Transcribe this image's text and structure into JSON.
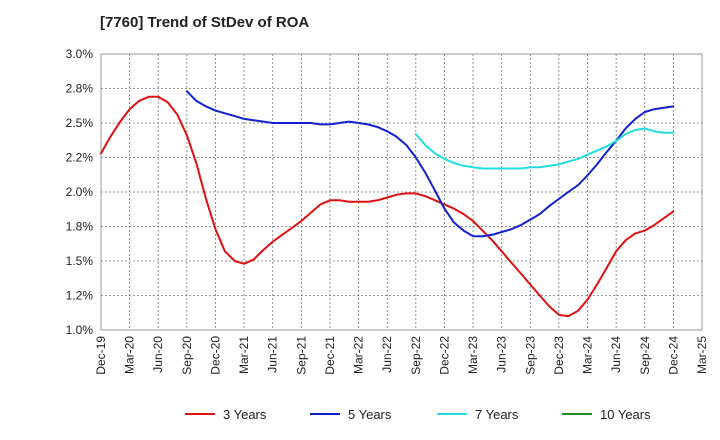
{
  "chart_data": {
    "type": "line",
    "title": "[7760]  Trend of StDev of ROA",
    "xlabel": "",
    "ylabel": "",
    "ylim": [
      1.0,
      3.0
    ],
    "y_ticks": [
      "3.0%",
      "2.8%",
      "2.5%",
      "2.2%",
      "2.0%",
      "1.8%",
      "1.5%",
      "1.2%",
      "1.0%"
    ],
    "x_ticks": [
      "Dec-19",
      "Mar-20",
      "Jun-20",
      "Sep-20",
      "Dec-20",
      "Mar-21",
      "Jun-21",
      "Sep-21",
      "Dec-21",
      "Mar-22",
      "Jun-22",
      "Sep-22",
      "Dec-22",
      "Mar-23",
      "Jun-23",
      "Sep-23",
      "Dec-23",
      "Mar-24",
      "Jun-24",
      "Sep-24",
      "Dec-24",
      "Mar-25"
    ],
    "grid": true,
    "legend_position": "bottom",
    "series": [
      {
        "name": "3 Years",
        "color": "#dd1111",
        "x": [
          0,
          0.33,
          0.67,
          1,
          1.33,
          1.67,
          2,
          2.33,
          2.67,
          3,
          3.33,
          3.67,
          4,
          4.33,
          4.67,
          5,
          5.33,
          5.67,
          6,
          6.33,
          6.67,
          7,
          7.33,
          7.67,
          8,
          8.33,
          8.67,
          9,
          9.33,
          9.67,
          10,
          10.33,
          10.67,
          11,
          11.33,
          11.67,
          12,
          12.33,
          12.67,
          13,
          13.33,
          13.67,
          14,
          14.33,
          14.67,
          15,
          15.33,
          15.67,
          16,
          16.33,
          16.67,
          17,
          17.33,
          17.67,
          18,
          18.33,
          18.67,
          19,
          19.33,
          19.67,
          20
        ],
        "values": [
          2.28,
          2.4,
          2.51,
          2.6,
          2.66,
          2.69,
          2.69,
          2.65,
          2.56,
          2.41,
          2.21,
          1.95,
          1.73,
          1.57,
          1.5,
          1.48,
          1.51,
          1.58,
          1.64,
          1.69,
          1.74,
          1.79,
          1.85,
          1.91,
          1.94,
          1.94,
          1.93,
          1.93,
          1.93,
          1.94,
          1.96,
          1.98,
          1.99,
          1.99,
          1.97,
          1.94,
          1.91,
          1.88,
          1.84,
          1.79,
          1.72,
          1.65,
          1.57,
          1.49,
          1.41,
          1.33,
          1.25,
          1.17,
          1.11,
          1.1,
          1.14,
          1.22,
          1.33,
          1.45,
          1.57,
          1.65,
          1.7,
          1.72,
          1.76,
          1.81,
          1.86
        ]
      },
      {
        "name": "5 Years",
        "color": "#1122cc",
        "x": [
          3,
          3.33,
          3.67,
          4,
          4.33,
          4.67,
          5,
          5.33,
          5.67,
          6,
          6.33,
          6.67,
          7,
          7.33,
          7.67,
          8,
          8.33,
          8.67,
          9,
          9.33,
          9.67,
          10,
          10.33,
          10.67,
          11,
          11.33,
          11.67,
          12,
          12.33,
          12.67,
          13,
          13.33,
          13.67,
          14,
          14.33,
          14.67,
          15,
          15.33,
          15.67,
          16,
          16.33,
          16.67,
          17,
          17.33,
          17.67,
          18,
          18.33,
          18.67,
          19,
          19.33,
          19.67,
          20
        ],
        "values": [
          2.73,
          2.66,
          2.62,
          2.59,
          2.57,
          2.55,
          2.53,
          2.52,
          2.51,
          2.5,
          2.5,
          2.5,
          2.5,
          2.5,
          2.49,
          2.49,
          2.5,
          2.51,
          2.5,
          2.49,
          2.47,
          2.44,
          2.4,
          2.34,
          2.25,
          2.14,
          2.01,
          1.88,
          1.78,
          1.72,
          1.68,
          1.68,
          1.69,
          1.71,
          1.73,
          1.76,
          1.8,
          1.84,
          1.9,
          1.95,
          2.0,
          2.05,
          2.12,
          2.2,
          2.29,
          2.37,
          2.46,
          2.53,
          2.58,
          2.6,
          2.61,
          2.62
        ]
      },
      {
        "name": "7 Years",
        "color": "#22dddd",
        "x": [
          11,
          11.33,
          11.67,
          12,
          12.33,
          12.67,
          13,
          13.33,
          13.67,
          14,
          14.33,
          14.67,
          15,
          15.33,
          15.67,
          16,
          16.33,
          16.67,
          17,
          17.33,
          17.67,
          18,
          18.33,
          18.67,
          19,
          19.33,
          19.67,
          20
        ],
        "values": [
          2.42,
          2.34,
          2.28,
          2.24,
          2.21,
          2.19,
          2.18,
          2.17,
          2.17,
          2.17,
          2.17,
          2.17,
          2.18,
          2.18,
          2.19,
          2.2,
          2.22,
          2.24,
          2.27,
          2.3,
          2.33,
          2.37,
          2.42,
          2.45,
          2.46,
          2.44,
          2.43,
          2.43
        ]
      },
      {
        "name": "10 Years",
        "color": "#228822",
        "x": [],
        "values": []
      }
    ]
  }
}
